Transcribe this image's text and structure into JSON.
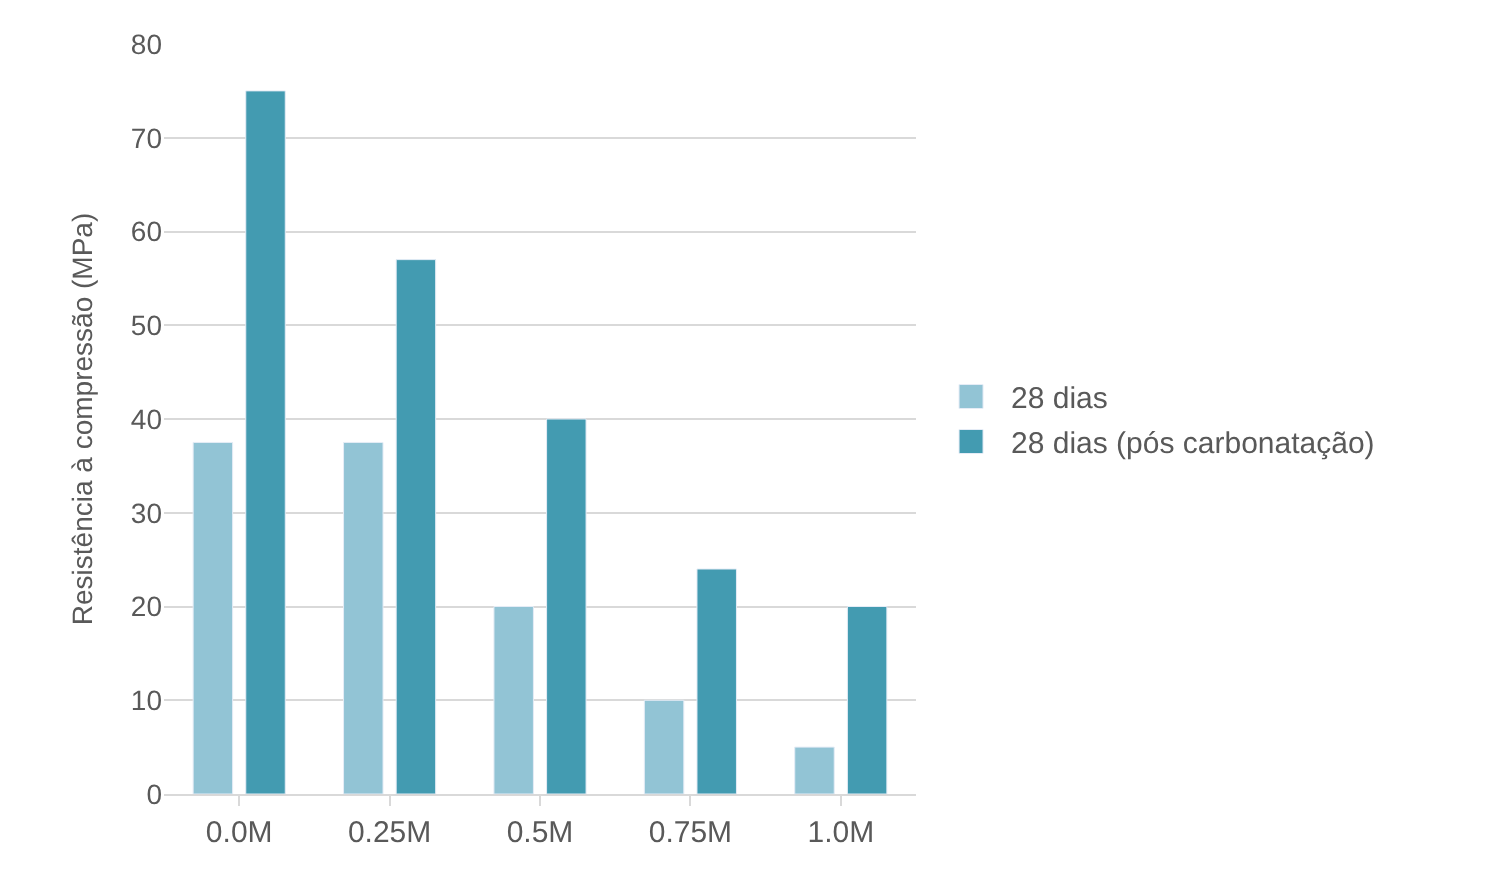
{
  "chart_data": {
    "type": "bar",
    "ylabel": "Resistência à compressão (MPa)",
    "categories": [
      "0.0M",
      "0.25M",
      "0.5M",
      "0.75M",
      "1.0M"
    ],
    "series": [
      {
        "name": "28 dias",
        "color": "#92c4d5",
        "values": [
          37.5,
          37.5,
          20,
          10,
          5
        ]
      },
      {
        "name": "28 dias (pós carbonatação)",
        "color": "#439bb1",
        "values": [
          75,
          57,
          40,
          24,
          20
        ]
      }
    ],
    "ylim": [
      0,
      80
    ],
    "yticks": [
      0,
      10,
      20,
      30,
      40,
      50,
      60,
      70,
      80
    ],
    "grid": "y",
    "legend": "right"
  }
}
